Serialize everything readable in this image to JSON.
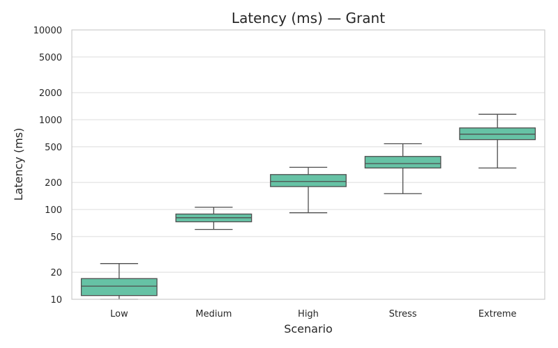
{
  "chart_data": {
    "type": "box",
    "title": "Latency (ms) — Grant",
    "xlabel": "Scenario",
    "ylabel": "Latency (ms)",
    "yscale": "log",
    "ylim": [
      10,
      10000
    ],
    "yticks": [
      10,
      20,
      50,
      100,
      200,
      500,
      1000,
      2000,
      5000,
      10000
    ],
    "grid": "horizontal",
    "box_color": "#66c2a5",
    "edge_color": "#4d4d4d",
    "grid_color": "#dcdcdc",
    "categories": [
      "Low",
      "Medium",
      "High",
      "Stress",
      "Extreme"
    ],
    "boxes": [
      {
        "category": "Low",
        "whisker_low": 10,
        "q1": 11,
        "median": 14,
        "q3": 17,
        "whisker_high": 25
      },
      {
        "category": "Medium",
        "whisker_low": 60,
        "q1": 73,
        "median": 81,
        "q3": 89,
        "whisker_high": 106
      },
      {
        "category": "High",
        "whisker_low": 92,
        "q1": 180,
        "median": 205,
        "q3": 245,
        "whisker_high": 295
      },
      {
        "category": "Stress",
        "whisker_low": 150,
        "q1": 290,
        "median": 325,
        "q3": 390,
        "whisker_high": 540
      },
      {
        "category": "Extreme",
        "whisker_low": 290,
        "q1": 600,
        "median": 690,
        "q3": 810,
        "whisker_high": 1150
      }
    ]
  }
}
